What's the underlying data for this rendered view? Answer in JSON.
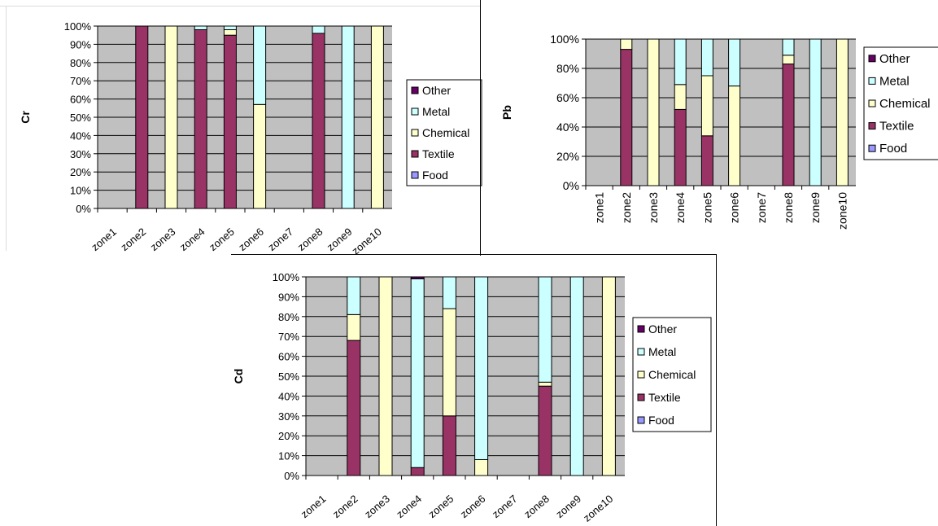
{
  "colors": {
    "plot_bg": "#c0c0c0",
    "grid": "#000000",
    "Other": "#660066",
    "Metal": "#ccffff",
    "Chemical": "#ffffcc",
    "Textile": "#993366",
    "Food": "#9999ff"
  },
  "chart_data": [
    {
      "id": "cr",
      "type": "bar",
      "stacked": true,
      "normalized": true,
      "ylabel": "Cr",
      "xlabel": "",
      "ylim": [
        0,
        100
      ],
      "yticks": [
        "0%",
        "10%",
        "20%",
        "30%",
        "40%",
        "50%",
        "60%",
        "70%",
        "80%",
        "90%",
        "100%"
      ],
      "categories": [
        "zone1",
        "zone2",
        "zone3",
        "zone4",
        "zone5",
        "zone6",
        "zone7",
        "zone8",
        "zone9",
        "zone10"
      ],
      "legend": [
        "Other",
        "Metal",
        "Chemical",
        "Textile",
        "Food"
      ],
      "legend_position": "right",
      "series": [
        {
          "name": "Food",
          "values": [
            0,
            0,
            0,
            0,
            0,
            0,
            0,
            0,
            0,
            0
          ]
        },
        {
          "name": "Textile",
          "values": [
            0,
            100,
            0,
            98,
            95,
            0,
            0,
            96,
            0,
            0
          ]
        },
        {
          "name": "Chemical",
          "values": [
            0,
            0,
            100,
            0,
            3,
            57,
            0,
            0,
            0,
            100
          ]
        },
        {
          "name": "Metal",
          "values": [
            0,
            0,
            0,
            2,
            2,
            43,
            0,
            4,
            100,
            0
          ]
        },
        {
          "name": "Other",
          "values": [
            0,
            0,
            0,
            0,
            0,
            0,
            0,
            0,
            0,
            0
          ]
        }
      ]
    },
    {
      "id": "pb",
      "type": "bar",
      "stacked": true,
      "normalized": true,
      "ylabel": "Pb",
      "xlabel": "",
      "ylim": [
        0,
        100
      ],
      "yticks": [
        "0%",
        "20%",
        "40%",
        "60%",
        "80%",
        "100%"
      ],
      "categories": [
        "zone1",
        "zone2",
        "zone3",
        "zone4",
        "zone5",
        "zone6",
        "zone7",
        "zone8",
        "zone9",
        "zone10"
      ],
      "legend": [
        "Other",
        "Metal",
        "Chemical",
        "Textile",
        "Food"
      ],
      "legend_position": "right",
      "series": [
        {
          "name": "Food",
          "values": [
            0,
            0,
            0,
            0,
            0,
            0,
            0,
            0,
            0,
            0
          ]
        },
        {
          "name": "Textile",
          "values": [
            0,
            93,
            0,
            52,
            34,
            0,
            0,
            83,
            0,
            0
          ]
        },
        {
          "name": "Chemical",
          "values": [
            0,
            7,
            100,
            17,
            41,
            68,
            0,
            6,
            0,
            100
          ]
        },
        {
          "name": "Metal",
          "values": [
            0,
            0,
            0,
            31,
            25,
            32,
            0,
            11,
            100,
            0
          ]
        },
        {
          "name": "Other",
          "values": [
            0,
            0,
            0,
            0,
            0,
            0,
            0,
            0,
            0,
            0
          ]
        }
      ]
    },
    {
      "id": "cd",
      "type": "bar",
      "stacked": true,
      "normalized": true,
      "ylabel": "Cd",
      "xlabel": "",
      "ylim": [
        0,
        100
      ],
      "yticks": [
        "0%",
        "10%",
        "20%",
        "30%",
        "40%",
        "50%",
        "60%",
        "70%",
        "80%",
        "90%",
        "100%"
      ],
      "categories": [
        "zone1",
        "zone2",
        "zone3",
        "zone4",
        "zone5",
        "zone6",
        "zone7",
        "zone8",
        "zone9",
        "zone10"
      ],
      "legend": [
        "Other",
        "Metal",
        "Chemical",
        "Textile",
        "Food"
      ],
      "legend_position": "right",
      "series": [
        {
          "name": "Food",
          "values": [
            0,
            0,
            0,
            0,
            0,
            0,
            0,
            0,
            0,
            0
          ]
        },
        {
          "name": "Textile",
          "values": [
            0,
            68,
            0,
            4,
            30,
            0,
            0,
            45,
            0,
            0
          ]
        },
        {
          "name": "Chemical",
          "values": [
            0,
            13,
            100,
            0,
            54,
            8,
            0,
            2,
            0,
            100
          ]
        },
        {
          "name": "Metal",
          "values": [
            0,
            19,
            0,
            95,
            16,
            92,
            0,
            53,
            100,
            0
          ]
        },
        {
          "name": "Other",
          "values": [
            0,
            0,
            0,
            1,
            0,
            0,
            0,
            0,
            0,
            0
          ]
        }
      ]
    }
  ]
}
